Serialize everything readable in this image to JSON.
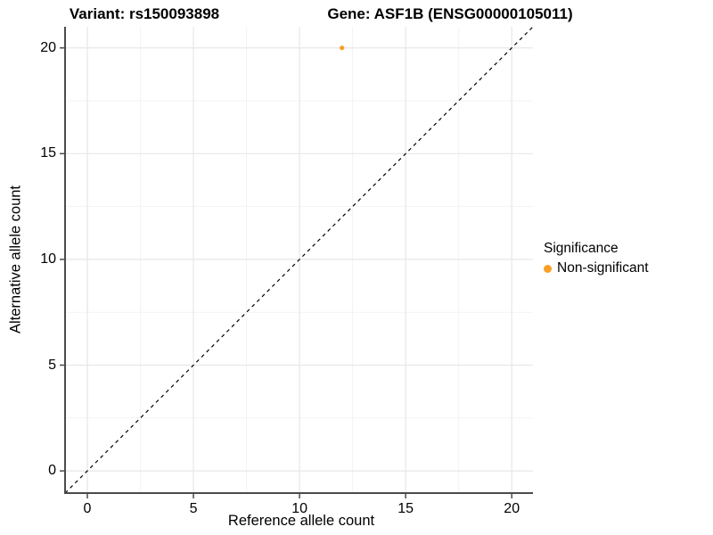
{
  "chart_data": {
    "type": "scatter",
    "title_variant": "Variant: rs150093898",
    "title_gene": "Gene: ASF1B (ENSG00000105011)",
    "xlabel": "Reference allele count",
    "ylabel": "Alternative allele count",
    "xlim": [
      -1.05,
      21.0
    ],
    "ylim": [
      -1.05,
      21.0
    ],
    "x_ticks": [
      0,
      5,
      10,
      15,
      20
    ],
    "y_ticks": [
      0,
      5,
      10,
      15,
      20
    ],
    "x_minor_ticks": [
      2.5,
      7.5,
      12.5,
      17.5
    ],
    "y_minor_ticks": [
      2.5,
      7.5,
      12.5,
      17.5
    ],
    "grid": true,
    "points": [
      {
        "x": 12,
        "y": 20,
        "series": "Non-significant"
      }
    ],
    "identity_line": {
      "style": "dashed",
      "from": [
        -1.05,
        -1.05
      ],
      "to": [
        21.0,
        21.0
      ]
    },
    "legend": {
      "title": "Significance",
      "position": "right",
      "items": [
        {
          "label": "Non-significant",
          "color": "#FA9E25"
        }
      ]
    },
    "colors": {
      "point": "#FA9E25",
      "grid_major": "#e7e7e7",
      "grid_minor": "#f3f3f3",
      "axis_line": "#4b4b4b",
      "tick_mark": "#4b4b4b",
      "identity_line": "#000000",
      "text": "#000000",
      "background": "#ffffff"
    }
  }
}
